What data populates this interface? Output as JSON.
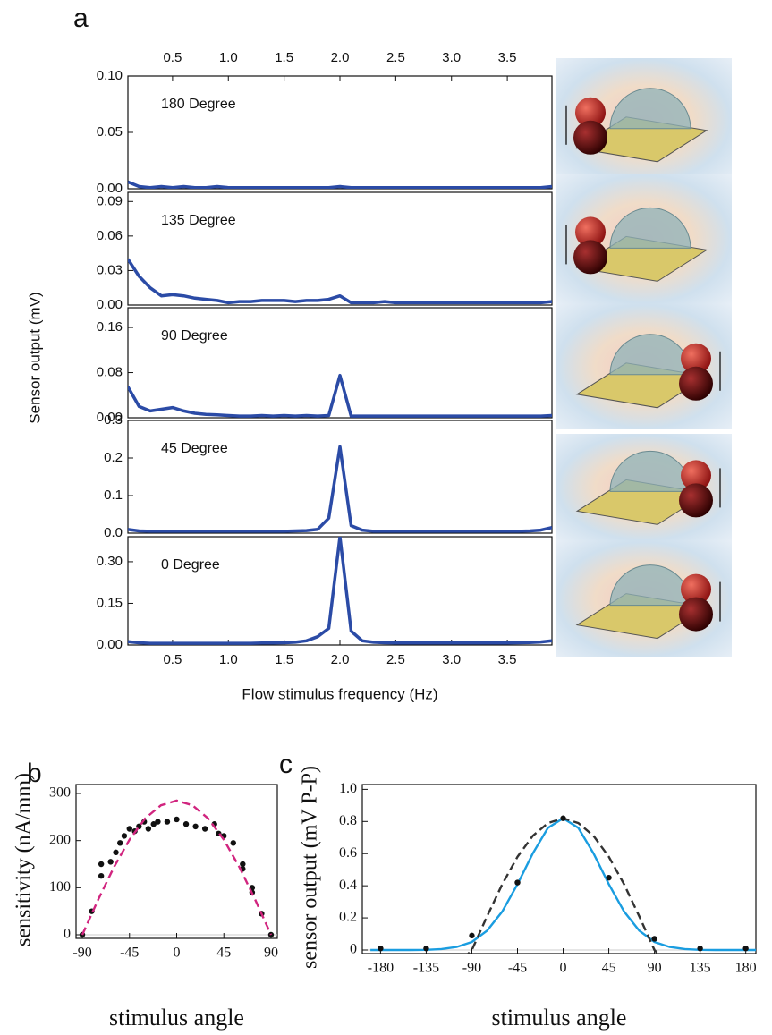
{
  "panel_labels": [
    "a",
    "b",
    "c"
  ],
  "figure_a": {
    "ylabel": "Sensor output (mV)",
    "xlabel": "Flow stimulus frequency (Hz)"
  },
  "chart_data": [
    {
      "type": "line",
      "annotation": "180 Degree",
      "xtick_side": "top",
      "x": [
        0.1,
        0.2,
        0.3,
        0.4,
        0.5,
        0.6,
        0.7,
        0.8,
        0.9,
        1.0,
        1.1,
        1.2,
        1.3,
        1.4,
        1.5,
        1.6,
        1.7,
        1.8,
        1.9,
        2.0,
        2.1,
        2.2,
        2.3,
        2.4,
        2.5,
        2.6,
        2.7,
        2.8,
        2.9,
        3.0,
        3.1,
        3.2,
        3.3,
        3.4,
        3.5,
        3.6,
        3.7,
        3.8,
        3.9
      ],
      "series": [
        {
          "color": "#2b4ba6",
          "values": [
            0.006,
            0.002,
            0.001,
            0.002,
            0.001,
            0.002,
            0.001,
            0.001,
            0.002,
            0.001,
            0.001,
            0.001,
            0.001,
            0.001,
            0.001,
            0.001,
            0.001,
            0.001,
            0.001,
            0.002,
            0.001,
            0.001,
            0.001,
            0.001,
            0.001,
            0.001,
            0.001,
            0.001,
            0.001,
            0.001,
            0.001,
            0.001,
            0.001,
            0.001,
            0.001,
            0.001,
            0.001,
            0.001,
            0.002
          ]
        }
      ],
      "xlim": [
        0.1,
        3.9
      ],
      "ylim": [
        0,
        0.1
      ],
      "xticks": [
        0.5,
        {
          "value": 1.0,
          "label": "1.0"
        },
        1.5,
        {
          "value": 2.0,
          "label": "2.0"
        },
        2.5,
        {
          "value": 3.0,
          "label": "3.0"
        },
        3.5
      ],
      "yticks": [
        {
          "value": 0,
          "label": "0.00"
        },
        0.05,
        {
          "value": 0.1,
          "label": "0.10"
        }
      ]
    },
    {
      "type": "line",
      "annotation": "135 Degree",
      "x": [
        0.1,
        0.2,
        0.3,
        0.4,
        0.5,
        0.6,
        0.7,
        0.8,
        0.9,
        1.0,
        1.1,
        1.2,
        1.3,
        1.4,
        1.5,
        1.6,
        1.7,
        1.8,
        1.9,
        2.0,
        2.1,
        2.2,
        2.3,
        2.4,
        2.5,
        2.6,
        2.7,
        2.8,
        2.9,
        3.0,
        3.1,
        3.2,
        3.3,
        3.4,
        3.5,
        3.6,
        3.7,
        3.8,
        3.9
      ],
      "series": [
        {
          "color": "#2b4ba6",
          "values": [
            0.04,
            0.025,
            0.015,
            0.008,
            0.009,
            0.008,
            0.006,
            0.005,
            0.004,
            0.002,
            0.003,
            0.003,
            0.004,
            0.004,
            0.004,
            0.003,
            0.004,
            0.004,
            0.005,
            0.008,
            0.002,
            0.002,
            0.002,
            0.003,
            0.002,
            0.002,
            0.002,
            0.002,
            0.002,
            0.002,
            0.002,
            0.002,
            0.002,
            0.002,
            0.002,
            0.002,
            0.002,
            0.002,
            0.003
          ]
        }
      ],
      "xlim": [
        0.1,
        3.9
      ],
      "ylim": [
        0,
        0.098
      ],
      "yticks": [
        {
          "value": 0,
          "label": "0.00"
        },
        0.03,
        0.06,
        0.09
      ]
    },
    {
      "type": "line",
      "annotation": "90 Degree",
      "x": [
        0.1,
        0.2,
        0.3,
        0.4,
        0.5,
        0.6,
        0.7,
        0.8,
        0.9,
        1.0,
        1.1,
        1.2,
        1.3,
        1.4,
        1.5,
        1.6,
        1.7,
        1.8,
        1.9,
        2.0,
        2.1,
        2.2,
        2.3,
        2.4,
        2.5,
        2.6,
        2.7,
        2.8,
        2.9,
        3.0,
        3.1,
        3.2,
        3.3,
        3.4,
        3.5,
        3.6,
        3.7,
        3.8,
        3.9
      ],
      "series": [
        {
          "color": "#2b4ba6",
          "values": [
            0.055,
            0.02,
            0.012,
            0.015,
            0.018,
            0.012,
            0.008,
            0.006,
            0.005,
            0.004,
            0.003,
            0.003,
            0.004,
            0.003,
            0.004,
            0.003,
            0.004,
            0.003,
            0.004,
            0.075,
            0.003,
            0.003,
            0.003,
            0.003,
            0.003,
            0.003,
            0.003,
            0.003,
            0.003,
            0.003,
            0.003,
            0.003,
            0.003,
            0.003,
            0.003,
            0.003,
            0.003,
            0.003,
            0.004
          ]
        }
      ],
      "xlim": [
        0.1,
        3.9
      ],
      "ylim": [
        0,
        0.195
      ],
      "yticks": [
        {
          "value": 0,
          "label": "0.00"
        },
        0.08,
        0.16
      ]
    },
    {
      "type": "line",
      "annotation": "45 Degree",
      "x": [
        0.1,
        0.2,
        0.3,
        0.4,
        0.5,
        0.6,
        0.7,
        0.8,
        0.9,
        1.0,
        1.1,
        1.2,
        1.3,
        1.4,
        1.5,
        1.6,
        1.7,
        1.8,
        1.9,
        2.0,
        2.1,
        2.2,
        2.3,
        2.4,
        2.5,
        2.6,
        2.7,
        2.8,
        2.9,
        3.0,
        3.1,
        3.2,
        3.3,
        3.4,
        3.5,
        3.6,
        3.7,
        3.8,
        3.9
      ],
      "series": [
        {
          "color": "#2b4ba6",
          "values": [
            0.01,
            0.006,
            0.005,
            0.005,
            0.005,
            0.005,
            0.005,
            0.005,
            0.005,
            0.005,
            0.005,
            0.005,
            0.005,
            0.005,
            0.005,
            0.006,
            0.007,
            0.01,
            0.04,
            0.23,
            0.02,
            0.008,
            0.005,
            0.005,
            0.005,
            0.005,
            0.005,
            0.005,
            0.005,
            0.005,
            0.005,
            0.005,
            0.005,
            0.005,
            0.005,
            0.005,
            0.006,
            0.008,
            0.015
          ]
        }
      ],
      "xlim": [
        0.1,
        3.9
      ],
      "ylim": [
        0,
        0.3
      ],
      "yticks": [
        {
          "value": 0,
          "label": "0.0"
        },
        0.1,
        0.2,
        0.3
      ]
    },
    {
      "type": "line",
      "annotation": "0 Degree",
      "xtick_side": "bottom",
      "x": [
        0.1,
        0.2,
        0.3,
        0.4,
        0.5,
        0.6,
        0.7,
        0.8,
        0.9,
        1.0,
        1.1,
        1.2,
        1.3,
        1.4,
        1.5,
        1.6,
        1.7,
        1.8,
        1.9,
        2.0,
        2.1,
        2.2,
        2.3,
        2.4,
        2.5,
        2.6,
        2.7,
        2.8,
        2.9,
        3.0,
        3.1,
        3.2,
        3.3,
        3.4,
        3.5,
        3.6,
        3.7,
        3.8,
        3.9
      ],
      "series": [
        {
          "color": "#2b4ba6",
          "values": [
            0.012,
            0.008,
            0.006,
            0.006,
            0.006,
            0.006,
            0.006,
            0.006,
            0.006,
            0.006,
            0.006,
            0.006,
            0.007,
            0.007,
            0.008,
            0.01,
            0.015,
            0.03,
            0.06,
            0.39,
            0.05,
            0.015,
            0.01,
            0.008,
            0.007,
            0.007,
            0.007,
            0.007,
            0.007,
            0.007,
            0.007,
            0.007,
            0.007,
            0.007,
            0.007,
            0.008,
            0.009,
            0.011,
            0.015
          ]
        }
      ],
      "xlim": [
        0.1,
        3.9
      ],
      "ylim": [
        0,
        0.39
      ],
      "xticks": [
        0.5,
        {
          "value": 1.0,
          "label": "1.0"
        },
        1.5,
        {
          "value": 2.0,
          "label": "2.0"
        },
        2.5,
        {
          "value": 3.0,
          "label": "3.0"
        },
        3.5
      ],
      "yticks": [
        {
          "value": 0,
          "label": "0.00"
        },
        0.15,
        {
          "value": 0.3,
          "label": "0.30"
        }
      ]
    },
    {
      "type": "scatter",
      "xlabel": "stimulus angle",
      "ylabel": "sensitivity (nA/mm)",
      "series": [
        {
          "mark": "dot",
          "color": "#111111",
          "x": [
            -90,
            -81,
            -72,
            -72,
            -63,
            -58,
            -54,
            -50,
            -45,
            -40,
            -36,
            -31,
            -27,
            -22,
            -18,
            -9,
            0,
            9,
            18,
            27,
            36,
            40,
            45,
            54,
            63,
            63,
            72,
            72,
            81,
            90
          ],
          "values": [
            0,
            50,
            125,
            150,
            155,
            175,
            195,
            210,
            225,
            220,
            230,
            240,
            225,
            235,
            240,
            240,
            245,
            235,
            230,
            225,
            235,
            215,
            210,
            195,
            150,
            140,
            100,
            90,
            45,
            0
          ]
        },
        {
          "mark": "line",
          "dash": true,
          "color": "#d1257f",
          "x": [
            -90,
            -75,
            -60,
            -45,
            -30,
            -15,
            0,
            15,
            30,
            45,
            60,
            75,
            90
          ],
          "values": [
            0,
            74,
            143,
            202,
            247,
            275,
            285,
            275,
            247,
            202,
            143,
            74,
            0
          ]
        }
      ],
      "xlim": [
        -96,
        96
      ],
      "ylim": [
        0,
        319
      ],
      "xticks": [
        -90,
        -45,
        0,
        45,
        90
      ],
      "yticks": [
        0,
        100,
        200,
        300
      ]
    },
    {
      "type": "scatter",
      "xlabel": "stimulus angle",
      "ylabel": "sensor output (mV P-P)",
      "series": [
        {
          "mark": "line",
          "dash": false,
          "color": "#1a9de0",
          "x": [
            -190,
            -150,
            -135,
            -120,
            -105,
            -90,
            -75,
            -60,
            -45,
            -30,
            -15,
            0,
            15,
            30,
            45,
            60,
            75,
            90,
            105,
            120,
            135,
            150,
            190
          ],
          "values": [
            0,
            0,
            0.001,
            0.006,
            0.019,
            0.05,
            0.12,
            0.24,
            0.41,
            0.6,
            0.76,
            0.82,
            0.76,
            0.6,
            0.41,
            0.24,
            0.12,
            0.05,
            0.019,
            0.006,
            0.001,
            0,
            0
          ]
        },
        {
          "mark": "line",
          "dash": true,
          "color": "#333333",
          "x": [
            -98,
            -90,
            -75,
            -60,
            -45,
            -30,
            -15,
            0,
            15,
            30,
            45,
            60,
            75,
            90,
            98
          ],
          "values": [
            -0.05,
            0,
            0.21,
            0.41,
            0.58,
            0.71,
            0.79,
            0.82,
            0.79,
            0.71,
            0.58,
            0.41,
            0.21,
            0,
            -0.05
          ]
        },
        {
          "mark": "dot",
          "color": "#111111",
          "x": [
            -180,
            -135,
            -90,
            -45,
            0,
            45,
            90,
            135,
            180
          ],
          "values": [
            0.01,
            0.01,
            0.09,
            0.42,
            0.82,
            0.45,
            0.07,
            0.01,
            0.01
          ]
        }
      ],
      "xlim": [
        -198,
        190
      ],
      "ylim": [
        0,
        1.03
      ],
      "xticks": [
        -180,
        -135,
        -90,
        -45,
        0,
        45,
        90,
        135,
        180
      ],
      "yticks": [
        0,
        0.2,
        0.4,
        0.6,
        0.8,
        {
          "value": 1.0,
          "label": "1.0"
        }
      ]
    }
  ]
}
